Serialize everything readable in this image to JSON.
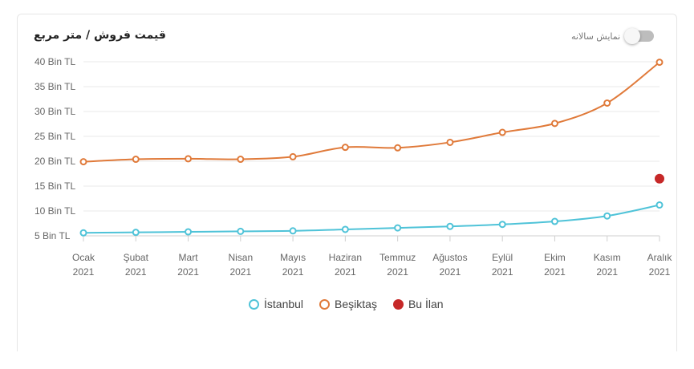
{
  "title": "قیمت فروش / متر مربع",
  "toggle": {
    "label": "نمایش سالانه",
    "on": false
  },
  "chart_data": {
    "type": "line",
    "categories": [
      [
        "Ocak",
        "2021"
      ],
      [
        "Şubat",
        "2021"
      ],
      [
        "Mart",
        "2021"
      ],
      [
        "Nisan",
        "2021"
      ],
      [
        "Mayıs",
        "2021"
      ],
      [
        "Haziran",
        "2021"
      ],
      [
        "Temmuz",
        "2021"
      ],
      [
        "Ağustos",
        "2021"
      ],
      [
        "Eylül",
        "2021"
      ],
      [
        "Ekim",
        "2021"
      ],
      [
        "Kasım",
        "2021"
      ],
      [
        "Aralık",
        "2021"
      ]
    ],
    "ylim": [
      5,
      40
    ],
    "yticks": [
      5,
      10,
      15,
      20,
      25,
      30,
      35,
      40
    ],
    "ytick_suffix": " Bin TL",
    "grid": true,
    "legend_position": "bottom",
    "series": [
      {
        "name": "İstanbul",
        "color": "#4fc3d8",
        "values": [
          5.6,
          5.7,
          5.8,
          5.9,
          6.0,
          6.3,
          6.6,
          6.9,
          7.3,
          7.9,
          9.0,
          11.2
        ]
      },
      {
        "name": "Beşiktaş",
        "color": "#e07a3a",
        "values": [
          19.9,
          20.4,
          20.5,
          20.4,
          20.9,
          22.8,
          22.7,
          23.8,
          25.8,
          27.6,
          31.7,
          39.9
        ]
      }
    ],
    "highlight": {
      "name": "Bu İlan",
      "color": "#c62828",
      "category_index": 11,
      "value": 16.5
    }
  }
}
